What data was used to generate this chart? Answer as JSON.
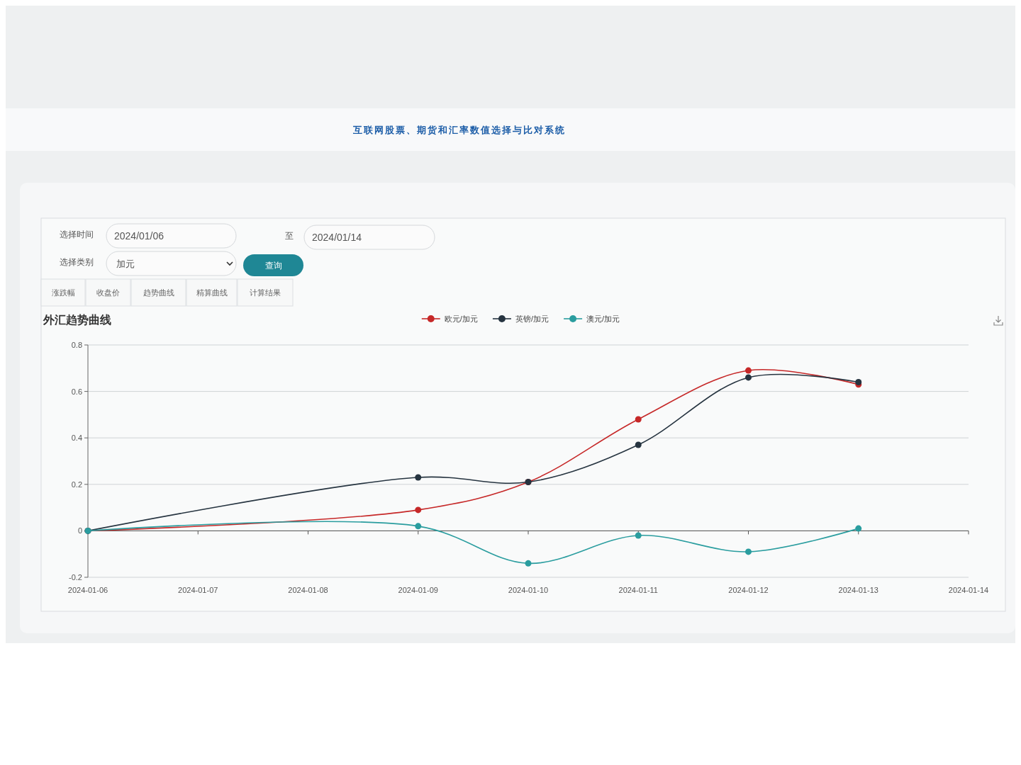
{
  "chart_data": {
    "type": "line",
    "title": "外汇趋势曲线",
    "annotations": [
      "互联网股票、期货和汇率数值选择与比对系统",
      "选择时间",
      "2024/01/06",
      "至",
      "2024/01/14",
      "选择类别",
      "加元",
      "查询",
      "涨跌幅",
      "收盘价",
      "趋势曲线",
      "精算曲线",
      "计算结果"
    ],
    "x": [
      "2024-01-06",
      "2024-01-09",
      "2024-01-10",
      "2024-01-11",
      "2024-01-12",
      "2024-01-13"
    ],
    "series": [
      {
        "name": "欧元/加元",
        "color": "#c62828",
        "values": [
          0,
          0.09,
          0.21,
          0.48,
          0.69,
          0.63
        ]
      },
      {
        "name": "英镑/加元",
        "color": "#263440",
        "values": [
          0,
          0.23,
          0.21,
          0.37,
          0.66,
          0.64
        ]
      },
      {
        "name": "澳元/加元",
        "color": "#2a9d9f",
        "values": [
          0,
          0.02,
          -0.14,
          -0.02,
          -0.09,
          0.01
        ]
      }
    ],
    "xlim": [
      "2024-01-06",
      "2024-01-14"
    ],
    "xticks": [
      "2024-01-06",
      "2024-01-07",
      "2024-01-08",
      "2024-01-09",
      "2024-01-10",
      "2024-01-11",
      "2024-01-12",
      "2024-01-13",
      "2024-01-14"
    ],
    "ylim": [
      -0.2,
      0.8
    ],
    "yticks": [
      -0.2,
      0,
      0.2,
      0.4,
      0.6,
      0.8
    ],
    "grid": "y",
    "legend": "top",
    "marker": "circle"
  }
}
